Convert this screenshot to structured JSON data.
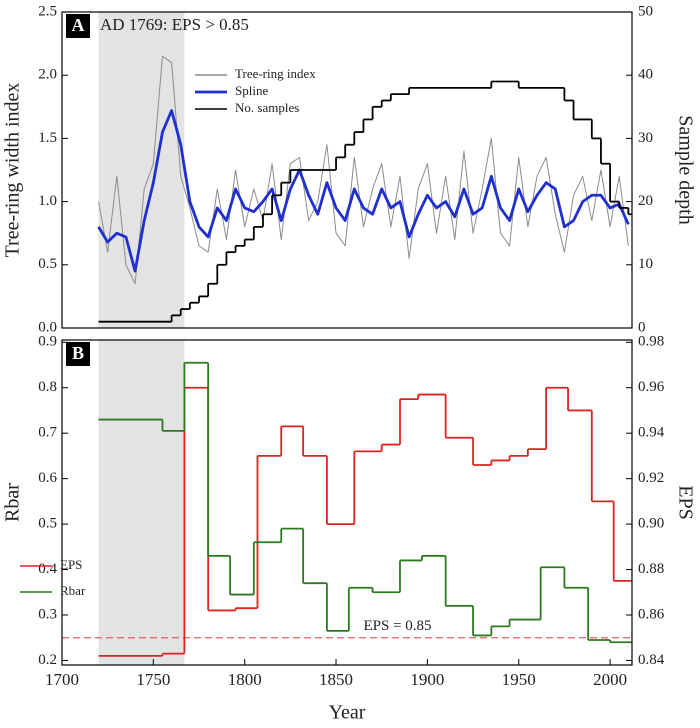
{
  "chart_data": [
    {
      "type": "line",
      "panel_label": "A",
      "annotation": "AD 1769: EPS > 0.85",
      "ylabel": "Tree-ring width index",
      "y2label": "Sample depth",
      "xlim": [
        1700,
        2012
      ],
      "ylim": [
        0,
        2.5
      ],
      "y2lim": [
        0,
        50
      ],
      "yticks": [
        {
          "value": 0,
          "label": "0.0"
        },
        0.5,
        {
          "value": 1,
          "label": "1.0"
        },
        1.5,
        {
          "value": 2,
          "label": "2.0"
        },
        2.5
      ],
      "y2ticks": [
        0,
        10,
        20,
        30,
        40,
        50
      ],
      "shaded_xrange": [
        1720,
        1767
      ],
      "x": [
        1720,
        1725,
        1730,
        1735,
        1740,
        1745,
        1750,
        1755,
        1760,
        1765,
        1770,
        1775,
        1780,
        1785,
        1790,
        1795,
        1800,
        1805,
        1810,
        1815,
        1820,
        1825,
        1830,
        1835,
        1840,
        1845,
        1850,
        1855,
        1860,
        1865,
        1870,
        1875,
        1880,
        1885,
        1890,
        1895,
        1900,
        1905,
        1910,
        1915,
        1920,
        1925,
        1930,
        1935,
        1940,
        1945,
        1950,
        1955,
        1960,
        1965,
        1970,
        1975,
        1980,
        1985,
        1990,
        1995,
        2000,
        2005,
        2010
      ],
      "series": [
        {
          "name": "Tree-ring index",
          "color": "#8c8c8c",
          "values": [
            1.0,
            0.6,
            1.2,
            0.5,
            0.35,
            1.1,
            1.3,
            2.15,
            2.1,
            1.2,
            0.95,
            0.65,
            0.6,
            1.1,
            0.7,
            1.25,
            0.8,
            1.1,
            0.85,
            1.3,
            0.7,
            1.3,
            1.35,
            0.85,
            1.0,
            1.45,
            0.75,
            0.65,
            1.35,
            0.8,
            1.1,
            1.3,
            0.8,
            1.2,
            0.55,
            1.1,
            1.3,
            0.75,
            1.2,
            0.7,
            1.4,
            0.75,
            1.1,
            1.5,
            0.75,
            0.65,
            1.35,
            0.8,
            1.2,
            1.35,
            0.9,
            0.6,
            1.05,
            1.2,
            0.85,
            1.25,
            0.8,
            1.2,
            0.65
          ]
        },
        {
          "name": "Spline",
          "color": "#1f2fd0",
          "values": [
            0.8,
            0.68,
            0.75,
            0.72,
            0.45,
            0.85,
            1.15,
            1.55,
            1.72,
            1.45,
            1.0,
            0.8,
            0.72,
            0.95,
            0.85,
            1.1,
            0.95,
            0.92,
            1.0,
            1.1,
            0.85,
            1.1,
            1.25,
            1.05,
            0.9,
            1.15,
            0.95,
            0.85,
            1.1,
            0.95,
            0.9,
            1.1,
            0.95,
            1.0,
            0.72,
            0.9,
            1.05,
            0.95,
            1.0,
            0.88,
            1.1,
            0.9,
            0.95,
            1.2,
            0.95,
            0.85,
            1.1,
            0.92,
            1.05,
            1.15,
            1.1,
            0.8,
            0.85,
            1.0,
            1.05,
            1.05,
            0.95,
            0.98,
            0.82
          ]
        },
        {
          "name": "No. samples",
          "color": "#000000",
          "axis": "y2",
          "step": true,
          "x": [
            1720,
            1760,
            1765,
            1770,
            1775,
            1780,
            1785,
            1790,
            1795,
            1800,
            1805,
            1810,
            1815,
            1820,
            1825,
            1850,
            1855,
            1860,
            1865,
            1870,
            1875,
            1880,
            1890,
            1935,
            1950,
            1975,
            1980,
            1990,
            1995,
            2000,
            2005,
            2010
          ],
          "values": [
            1,
            2,
            3,
            4,
            5,
            7,
            10,
            12,
            13,
            14,
            16,
            18,
            21,
            23,
            25,
            27,
            29,
            31,
            33,
            35,
            36,
            37,
            38,
            39,
            38,
            36,
            33,
            30,
            26,
            20,
            19,
            18
          ]
        }
      ]
    },
    {
      "type": "line",
      "panel_label": "B",
      "xlabel": "Year",
      "ylabel": "Rbar",
      "y2label": "EPS",
      "xlim": [
        1700,
        2012
      ],
      "ylim": [
        0.19,
        0.905
      ],
      "y2lim": [
        0.838,
        0.981
      ],
      "xticks": [
        1700,
        1750,
        1800,
        1850,
        1900,
        1950,
        2000
      ],
      "yticks": [
        0.2,
        0.3,
        0.4,
        0.5,
        0.6,
        0.7,
        0.8,
        0.9
      ],
      "y2ticks": [
        0.84,
        0.86,
        0.88,
        {
          "value": 0.9,
          "label": "0.90"
        },
        0.92,
        0.94,
        0.96,
        0.98
      ],
      "shaded_xrange": [
        1720,
        1767
      ],
      "reference_line": {
        "value": 0.85,
        "axis": "y2",
        "label": "EPS = 0.85",
        "color": "#e06060"
      },
      "series": [
        {
          "name": "EPS",
          "color": "#dd2222",
          "axis": "y2",
          "step": true,
          "x": [
            1720,
            1755,
            1767,
            1780,
            1795,
            1807,
            1820,
            1832,
            1845,
            1860,
            1875,
            1885,
            1895,
            1910,
            1925,
            1935,
            1945,
            1955,
            1965,
            1977,
            1990,
            2002
          ],
          "values": [
            0.842,
            0.843,
            0.96,
            0.862,
            0.863,
            0.93,
            0.943,
            0.93,
            0.9,
            0.932,
            0.935,
            0.955,
            0.957,
            0.938,
            0.926,
            0.928,
            0.93,
            0.933,
            0.96,
            0.95,
            0.91,
            0.875
          ]
        },
        {
          "name": "Rbar",
          "color": "#2a7a1e",
          "step": true,
          "x": [
            1720,
            1755,
            1767,
            1780,
            1792,
            1805,
            1820,
            1832,
            1845,
            1857,
            1870,
            1885,
            1897,
            1910,
            1925,
            1935,
            1945,
            1962,
            1975,
            1988,
            2000
          ],
          "values": [
            0.73,
            0.705,
            0.855,
            0.43,
            0.345,
            0.46,
            0.49,
            0.37,
            0.265,
            0.36,
            0.35,
            0.42,
            0.43,
            0.32,
            0.255,
            0.275,
            0.29,
            0.405,
            0.36,
            0.245,
            0.24
          ]
        }
      ]
    }
  ]
}
